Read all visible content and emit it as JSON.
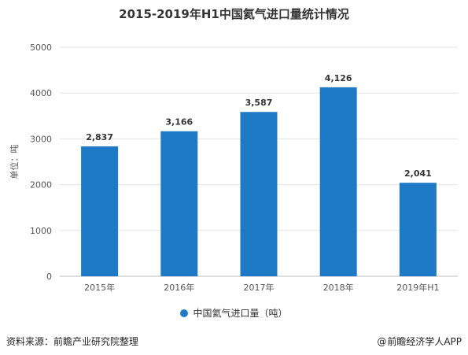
{
  "chart_data": {
    "type": "bar",
    "title": "2015-2019年H1中国氦气进口量统计情况",
    "ylabel": "单位：吨",
    "categories": [
      "2015年",
      "2016年",
      "2017年",
      "2018年",
      "2019年H1"
    ],
    "series": [
      {
        "name": "中国氦气进口量（吨）",
        "values": [
          2837,
          3166,
          3587,
          4126,
          2041
        ],
        "value_labels": [
          "2,837",
          "3,166",
          "3,587",
          "4,126",
          "2,041"
        ],
        "color": "#1f7ac6"
      }
    ],
    "yticks": [
      "0",
      "1000",
      "2000",
      "3000",
      "4000",
      "5000"
    ],
    "ylim": [
      0,
      5000
    ],
    "grid": true,
    "legend": "bottom"
  },
  "footer": {
    "source": "资料来源：前瞻产业研究院整理",
    "brand": "前瞻经济学人APP",
    "brand_icon": "at-icon"
  }
}
